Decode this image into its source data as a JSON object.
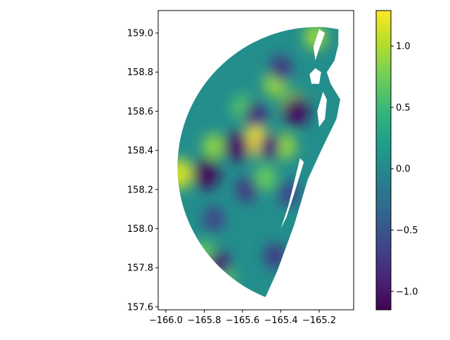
{
  "chart_data": {
    "type": "heatmap",
    "title": "",
    "xlabel": "",
    "ylabel": "",
    "xlim": [
      -166.04,
      -165.02
    ],
    "ylim": [
      157.585,
      159.115
    ],
    "x_ticks": [
      -166.0,
      -165.8,
      -165.6,
      -165.4,
      -165.2
    ],
    "x_tick_labels": [
      "−166.0",
      "−165.8",
      "−165.6",
      "−165.4",
      "−165.2"
    ],
    "y_ticks": [
      157.6,
      157.8,
      158.0,
      158.2,
      158.4,
      158.6,
      158.8,
      159.0
    ],
    "y_tick_labels": [
      "157.6",
      "157.8",
      "158.0",
      "158.2",
      "158.4",
      "158.6",
      "158.8",
      "159.0"
    ],
    "colorbar": {
      "colormap": "viridis",
      "range": [
        -1.15,
        1.29
      ],
      "ticks": [
        -1.0,
        -0.5,
        0.0,
        0.5,
        1.0
      ],
      "tick_labels": [
        "−1.0",
        "−0.5",
        "0.0",
        "0.5",
        "1.0"
      ]
    },
    "region": {
      "description": "circular-sector domain with a ragged right-hand boundary",
      "center_estimate": [
        -165.45,
        158.33
      ],
      "boundary": [
        [
          -165.17,
          159.03
        ],
        [
          -165.1,
          159.02
        ],
        [
          -165.1,
          158.94
        ],
        [
          -165.12,
          158.86
        ],
        [
          -165.16,
          158.8
        ],
        [
          -165.14,
          158.74
        ],
        [
          -165.09,
          158.66
        ],
        [
          -165.11,
          158.56
        ],
        [
          -165.18,
          158.42
        ],
        [
          -165.26,
          158.25
        ],
        [
          -165.33,
          158.02
        ],
        [
          -165.42,
          157.78
        ],
        [
          -165.48,
          157.65
        ]
      ],
      "holes": [
        [
          [
            -165.2,
            159.02
          ],
          [
            -165.17,
            159.0
          ],
          [
            -165.2,
            158.92
          ],
          [
            -165.22,
            158.86
          ],
          [
            -165.23,
            158.93
          ]
        ],
        [
          [
            -165.22,
            158.82
          ],
          [
            -165.19,
            158.8
          ],
          [
            -165.2,
            158.74
          ],
          [
            -165.24,
            158.74
          ],
          [
            -165.25,
            158.79
          ]
        ],
        [
          [
            -165.18,
            158.7
          ],
          [
            -165.16,
            158.66
          ],
          [
            -165.17,
            158.56
          ],
          [
            -165.2,
            158.52
          ],
          [
            -165.21,
            158.6
          ]
        ],
        [
          [
            -165.3,
            158.36
          ],
          [
            -165.28,
            158.34
          ],
          [
            -165.33,
            158.18
          ],
          [
            -165.37,
            158.06
          ],
          [
            -165.4,
            158.0
          ],
          [
            -165.36,
            158.12
          ]
        ]
      ]
    },
    "field_peaks": [
      {
        "x": -165.53,
        "y": 158.45,
        "value": 1.25
      },
      {
        "x": -165.93,
        "y": 158.28,
        "value": 1.1
      },
      {
        "x": -165.33,
        "y": 158.62,
        "value": 1.0
      },
      {
        "x": -165.43,
        "y": 158.74,
        "value": 0.9
      },
      {
        "x": -165.22,
        "y": 158.98,
        "value": 0.9
      },
      {
        "x": -165.38,
        "y": 158.42,
        "value": 0.9
      },
      {
        "x": -165.75,
        "y": 158.42,
        "value": 0.85
      },
      {
        "x": -165.8,
        "y": 157.87,
        "value": 0.7
      },
      {
        "x": -165.7,
        "y": 157.76,
        "value": 0.7
      },
      {
        "x": -165.48,
        "y": 158.26,
        "value": 0.7
      },
      {
        "x": -165.6,
        "y": 158.62,
        "value": 0.6
      },
      {
        "x": -165.79,
        "y": 158.28,
        "value": -1.1
      },
      {
        "x": -165.32,
        "y": 158.6,
        "value": -1.05
      },
      {
        "x": -165.63,
        "y": 158.42,
        "value": -1.0
      },
      {
        "x": -165.46,
        "y": 158.42,
        "value": -0.9
      },
      {
        "x": -165.72,
        "y": 157.82,
        "value": -0.9
      },
      {
        "x": -165.53,
        "y": 158.58,
        "value": -0.8
      },
      {
        "x": -165.4,
        "y": 158.82,
        "value": -0.75
      },
      {
        "x": -165.58,
        "y": 158.2,
        "value": -0.7
      },
      {
        "x": -165.43,
        "y": 157.86,
        "value": -0.7
      },
      {
        "x": -165.75,
        "y": 158.05,
        "value": -0.6
      },
      {
        "x": -165.36,
        "y": 158.18,
        "value": -0.6
      }
    ]
  }
}
